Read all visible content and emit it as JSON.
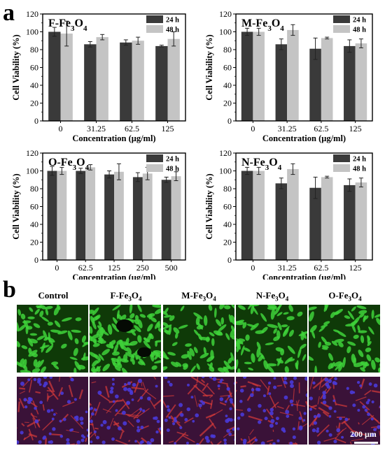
{
  "figure": {
    "panel_a": "a",
    "panel_b": "b"
  },
  "colors": {
    "h24": "#3a3a3a",
    "h48": "#c4c4c4",
    "green_bg": "#0f3a08",
    "green_cell": "#3ed23a",
    "red_bg": "#3a1238",
    "red_fiber": "#d63a3a",
    "nucleus": "#4a3ad8"
  },
  "chart_data": [
    {
      "type": "bar",
      "title_main": "F-Fe",
      "title_sub": "3",
      "title_end": "O",
      "title_sub2": "4",
      "categories": [
        "0",
        "31.25",
        "62.5",
        "125"
      ],
      "series": [
        {
          "name": "24 h",
          "values": [
            100,
            86,
            88,
            84
          ],
          "errors": [
            5,
            3,
            3,
            1
          ]
        },
        {
          "name": "48 h",
          "values": [
            98,
            94,
            90,
            92
          ],
          "errors": [
            14,
            3,
            4,
            8
          ]
        }
      ],
      "ylim": [
        0,
        120
      ],
      "yticks": [
        0,
        20,
        40,
        60,
        80,
        100,
        120
      ],
      "xlabel": "Concentration (μg/ml)",
      "ylabel": "Cell Viability (%)",
      "legend": "top-right"
    },
    {
      "type": "bar",
      "title_main": "M-Fe",
      "title_sub": "3",
      "title_end": "O",
      "title_sub2": "4",
      "categories": [
        "0",
        "31.25",
        "62.5",
        "125"
      ],
      "series": [
        {
          "name": "24 h",
          "values": [
            100,
            86,
            81,
            84
          ],
          "errors": [
            4,
            6,
            12,
            7
          ]
        },
        {
          "name": "48 h",
          "values": [
            100,
            102,
            93,
            87
          ],
          "errors": [
            4,
            6,
            1,
            5
          ]
        }
      ],
      "ylim": [
        0,
        120
      ],
      "yticks": [
        0,
        20,
        40,
        60,
        80,
        100,
        120
      ],
      "xlabel": "Concentration (μg/ml)",
      "ylabel": "Cell Viability (%)",
      "legend": "top-right"
    },
    {
      "type": "bar",
      "title_main": "O-Fe",
      "title_sub": "3",
      "title_end": "O",
      "title_sub2": "4",
      "categories": [
        "0",
        "62.5",
        "125",
        "250",
        "500"
      ],
      "series": [
        {
          "name": "24 h",
          "values": [
            100,
            100,
            96,
            93,
            90
          ],
          "errors": [
            5,
            3,
            4,
            5,
            3
          ]
        },
        {
          "name": "48 h",
          "values": [
            100,
            104,
            99,
            97,
            94
          ],
          "errors": [
            4,
            3,
            9,
            7,
            5
          ]
        }
      ],
      "ylim": [
        0,
        120
      ],
      "yticks": [
        0,
        20,
        40,
        60,
        80,
        100,
        120
      ],
      "xlabel": "Concentration (μg/ml)",
      "ylabel": "Cell Viability (%)",
      "legend": "top-right"
    },
    {
      "type": "bar",
      "title_main": "N-Fe",
      "title_sub": "3",
      "title_end": "O",
      "title_sub2": "4",
      "categories": [
        "0",
        "31.25",
        "62.5",
        "125"
      ],
      "series": [
        {
          "name": "24 h",
          "values": [
            100,
            86,
            81,
            84
          ],
          "errors": [
            4,
            6,
            12,
            7
          ]
        },
        {
          "name": "48 h",
          "values": [
            100,
            102,
            93,
            87
          ],
          "errors": [
            4,
            6,
            1,
            5
          ]
        }
      ],
      "ylim": [
        0,
        120
      ],
      "yticks": [
        0,
        20,
        40,
        60,
        80,
        100,
        120
      ],
      "xlabel": "Concentration (μg/ml)",
      "ylabel": "Cell Viability (%)",
      "legend": "top-right"
    }
  ],
  "micrographs": {
    "columns": [
      {
        "main": "Control",
        "sub": "",
        "end": "",
        "sub2": ""
      },
      {
        "main": "F-Fe",
        "sub": "3",
        "end": "O",
        "sub2": "4"
      },
      {
        "main": "M-Fe",
        "sub": "3",
        "end": "O",
        "sub2": "4"
      },
      {
        "main": "N-Fe",
        "sub": "3",
        "end": "O",
        "sub2": "4"
      },
      {
        "main": "O-Fe",
        "sub": "3",
        "end": "O",
        "sub2": "4"
      }
    ],
    "rows": [
      "live-cell-stain",
      "cytoskeleton-stain"
    ],
    "scale_bar_label": "200 μm"
  }
}
